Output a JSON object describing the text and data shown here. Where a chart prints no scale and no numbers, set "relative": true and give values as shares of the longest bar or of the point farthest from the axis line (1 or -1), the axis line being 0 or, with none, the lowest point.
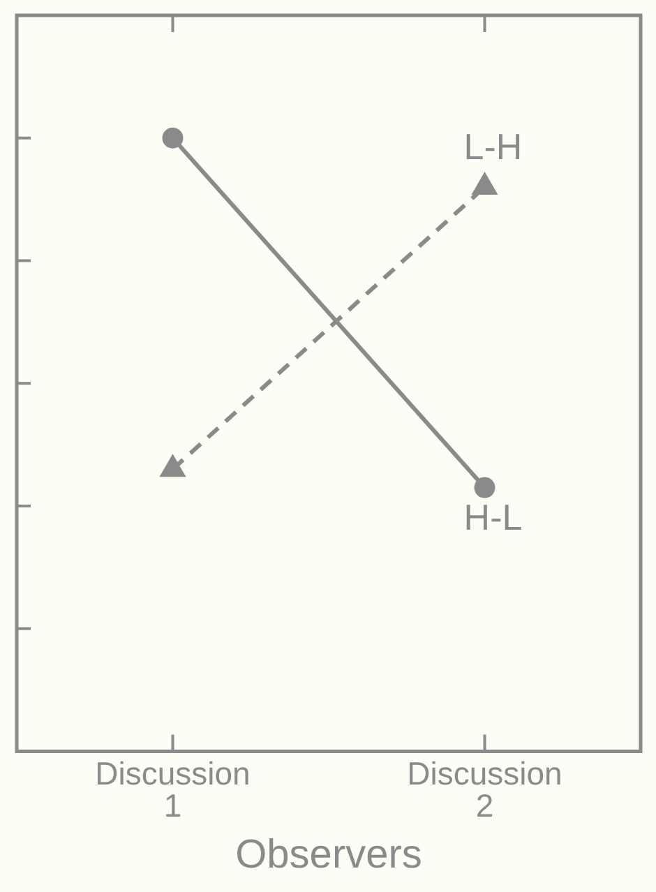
{
  "chart_data": {
    "type": "line",
    "xlabel": "Observers",
    "categories": [
      "Discussion 1",
      "Discussion 2"
    ],
    "relative": true,
    "grid": false,
    "legend": false,
    "series": [
      {
        "name": "H-L",
        "color": "#8a8a8a",
        "values": [
          1,
          0.43
        ],
        "marker": "circle",
        "line_style": "solid"
      },
      {
        "name": "L-H",
        "color": "#8a8a8a",
        "values": [
          0.46,
          0.92
        ],
        "marker": "triangle",
        "line_style": "dashed"
      }
    ]
  }
}
